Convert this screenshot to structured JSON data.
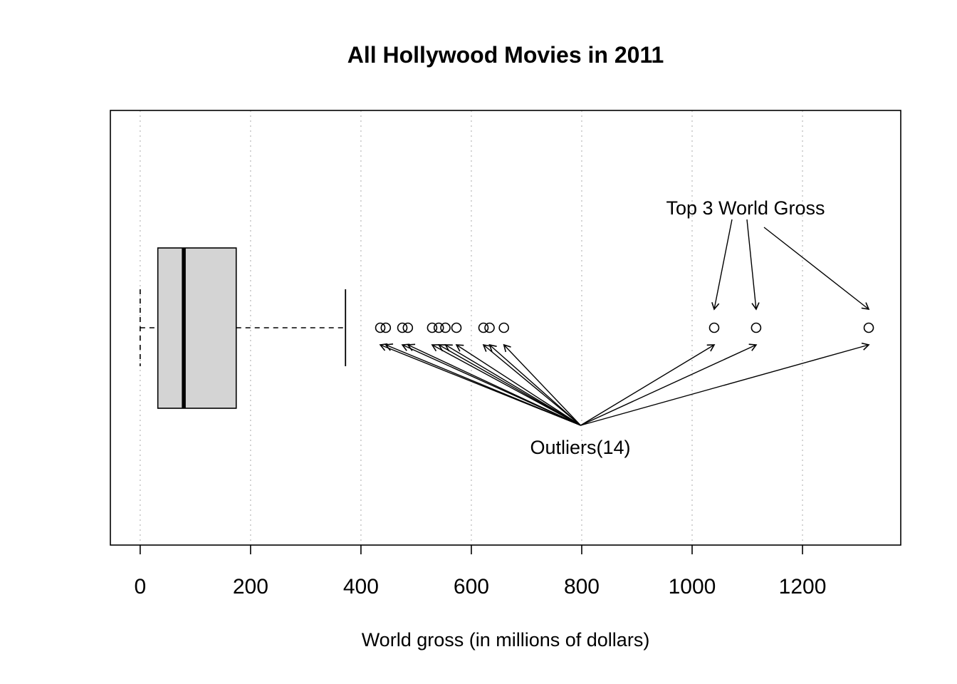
{
  "chart_data": {
    "type": "boxplot",
    "orientation": "horizontal",
    "title": "All Hollywood Movies in 2011",
    "xlabel": "World gross (in millions of dollars)",
    "x_ticks": [
      0,
      200,
      400,
      600,
      800,
      1000,
      1200
    ],
    "xlim": [
      -54,
      1378
    ],
    "grid": "dotted-vertical",
    "legend": "none",
    "box": {
      "lower_whisker": 0,
      "q1": 32,
      "median": 79,
      "q3": 174,
      "upper_whisker": 372
    },
    "outliers": [
      435,
      445,
      475,
      485,
      529,
      541,
      553,
      573,
      622,
      633,
      659,
      1040,
      1116,
      1320
    ],
    "outlier_count": 14,
    "annotations": [
      {
        "id": "top3",
        "text": "Top 3 World Gross",
        "points_to": [
          1040,
          1116,
          1320
        ]
      },
      {
        "id": "outliers",
        "text": "Outliers(14)",
        "points_to": "all_outliers",
        "origin_value": 798
      }
    ],
    "colors": {
      "background": "#ffffff",
      "stroke": "#000000",
      "box_fill": "#d4d4d4",
      "grid": "#b8b8b8"
    }
  }
}
